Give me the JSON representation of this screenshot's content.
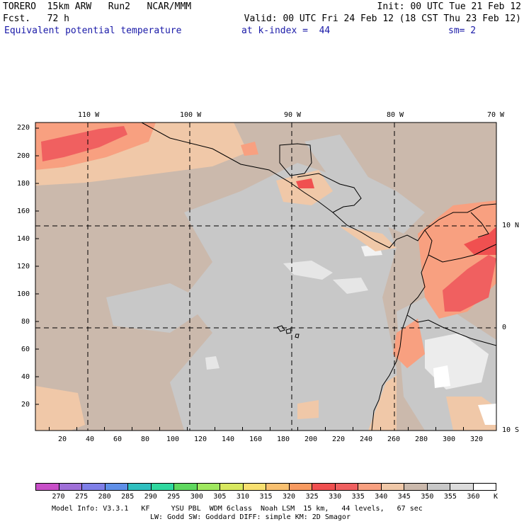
{
  "header": {
    "model": "TORERO  15km ARW   Run2   NCAR/MMM",
    "init": "Init: 00 UTC Tue 21 Feb 12",
    "fcst": "Fcst.   72 h",
    "valid": "Valid: 00 UTC Fri 24 Feb 12 (18 CST Thu 23 Feb 12)",
    "field": "Equivalent potential temperature",
    "level": "at k-index =  44",
    "smoothing": "sm= 2"
  },
  "map": {
    "top_lon_labels": [
      "110 W",
      "100 W",
      "90 W",
      "80 W",
      "70 W"
    ],
    "right_lat_labels": [
      "10 N",
      "0",
      "10 S"
    ],
    "left_grid_labels": [
      "220",
      "200",
      "180",
      "160",
      "140",
      "120",
      "100",
      "80",
      "60",
      "40",
      "20"
    ],
    "bottom_grid_labels": [
      "20",
      "40",
      "60",
      "80",
      "100",
      "120",
      "140",
      "160",
      "180",
      "200",
      "220",
      "240",
      "260",
      "280",
      "300",
      "320"
    ],
    "colors": {
      "land_border": "#000000",
      "gridline": "#000000"
    }
  },
  "colorbar": {
    "levels": [
      "270",
      "275",
      "280",
      "285",
      "290",
      "295",
      "300",
      "305",
      "310",
      "315",
      "320",
      "325",
      "330",
      "335",
      "340",
      "345",
      "350",
      "355",
      "360"
    ],
    "unit": "K",
    "colors": [
      "#c84fc8",
      "#9f6fd8",
      "#7f7fe8",
      "#5f8fe8",
      "#2fbfbf",
      "#2fd89f",
      "#5fd85f",
      "#9fe85f",
      "#d8e85f",
      "#f8e070",
      "#f8c070",
      "#f89a60",
      "#f05050",
      "#f06060",
      "#f8a080",
      "#f0c8a8",
      "#cbb9ac",
      "#c8c8c8",
      "#dcdcdc",
      "#ffffff"
    ]
  },
  "footer": {
    "line1": "Model Info: V3.3.1   KF     YSU PBL  WDM 6class  Noah LSM  15 km,   44 levels,   67 sec",
    "line2": "LW: Godd SW: Goddard DIFF: simple KM: 2D Smagor"
  }
}
